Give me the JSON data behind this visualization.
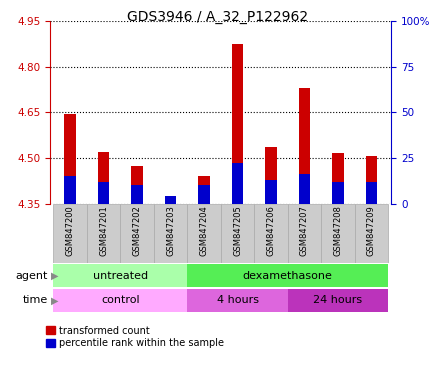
{
  "title": "GDS3946 / A_32_P122962",
  "samples": [
    "GSM847200",
    "GSM847201",
    "GSM847202",
    "GSM847203",
    "GSM847204",
    "GSM847205",
    "GSM847206",
    "GSM847207",
    "GSM847208",
    "GSM847209"
  ],
  "transformed_count": [
    4.645,
    4.52,
    4.475,
    4.365,
    4.44,
    4.875,
    4.535,
    4.73,
    4.515,
    4.505
  ],
  "percentile_rank": [
    15,
    12,
    10,
    4,
    10,
    22,
    13,
    16,
    12,
    12
  ],
  "ylim_left": [
    4.35,
    4.95
  ],
  "ylim_right": [
    0,
    100
  ],
  "yticks_left": [
    4.35,
    4.5,
    4.65,
    4.8,
    4.95
  ],
  "yticks_right": [
    0,
    25,
    50,
    75,
    100
  ],
  "ytick_labels_right": [
    "0",
    "25",
    "50",
    "75",
    "100%"
  ],
  "bar_color_red": "#cc0000",
  "bar_color_blue": "#0000cc",
  "bar_bottom": 4.35,
  "agent_groups": [
    {
      "label": "untreated",
      "start": 0,
      "end": 3,
      "color": "#aaeea a"
    },
    {
      "label": "dexamethasone",
      "start": 4,
      "end": 9,
      "color": "#55dd55"
    }
  ],
  "time_groups": [
    {
      "label": "control",
      "start": 0,
      "end": 3,
      "color": "#eeaaee"
    },
    {
      "label": "4 hours",
      "start": 4,
      "end": 6,
      "color": "#dd77dd"
    },
    {
      "label": "24 hours",
      "start": 7,
      "end": 9,
      "color": "#cc44cc"
    }
  ],
  "ylabel_left_color": "#cc0000",
  "ylabel_right_color": "#0000cc",
  "tick_label_area_color": "#cccccc",
  "agent_untreated_color": "#aaffaa",
  "agent_dexa_color": "#55ee55",
  "time_control_color": "#ffaaff",
  "time_4h_color": "#dd66dd",
  "time_24h_color": "#bb33bb"
}
